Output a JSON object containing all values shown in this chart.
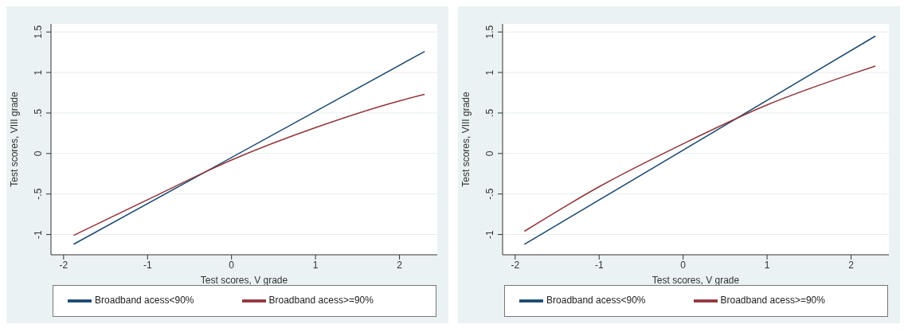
{
  "chart_data": [
    {
      "type": "line",
      "xlabel": "Test scores, V grade",
      "ylabel": "Test scores, VIII grade",
      "xlim": [
        -2.15,
        2.45
      ],
      "ylim": [
        -1.25,
        1.6
      ],
      "xticks": [
        -2,
        -1,
        0,
        1,
        2
      ],
      "yticks": [
        -1,
        {
          "value": -0.5,
          "label": "-.5"
        },
        0,
        {
          "value": 0.5,
          "label": ".5"
        },
        1,
        {
          "value": 1.5,
          "label": "1.5"
        }
      ],
      "grid": "y",
      "legend": "bottom",
      "series": [
        {
          "name": "Broadband acess<90%",
          "color": "#1a476f",
          "x": [
            -1.88,
            2.3
          ],
          "values": [
            -1.12,
            1.26
          ]
        },
        {
          "name": "Broadband acess>=90%",
          "color": "#90353b",
          "x": [
            -1.88,
            -1,
            0,
            1,
            2,
            2.3
          ],
          "values": [
            -1.01,
            -0.57,
            -0.08,
            0.32,
            0.65,
            0.73
          ]
        }
      ]
    },
    {
      "type": "line",
      "xlabel": "Test scores, V grade",
      "ylabel": "Test scores, VIII grade",
      "xlim": [
        -2.15,
        2.45
      ],
      "ylim": [
        -1.25,
        1.6
      ],
      "xticks": [
        -2,
        -1,
        0,
        1,
        2
      ],
      "yticks": [
        -1,
        {
          "value": -0.5,
          "label": "-.5"
        },
        0,
        {
          "value": 0.5,
          "label": ".5"
        },
        1,
        {
          "value": 1.5,
          "label": "1.5"
        }
      ],
      "grid": "y",
      "legend": "bottom",
      "series": [
        {
          "name": "Broadband acess<90%",
          "color": "#1a476f",
          "x": [
            -1.89,
            2.29
          ],
          "values": [
            -1.12,
            1.45
          ]
        },
        {
          "name": "Broadband acess>=90%",
          "color": "#90353b",
          "x": [
            -1.89,
            -1,
            0,
            1,
            2,
            2.29
          ],
          "values": [
            -0.96,
            -0.41,
            0.12,
            0.6,
            0.98,
            1.08
          ]
        }
      ]
    }
  ]
}
